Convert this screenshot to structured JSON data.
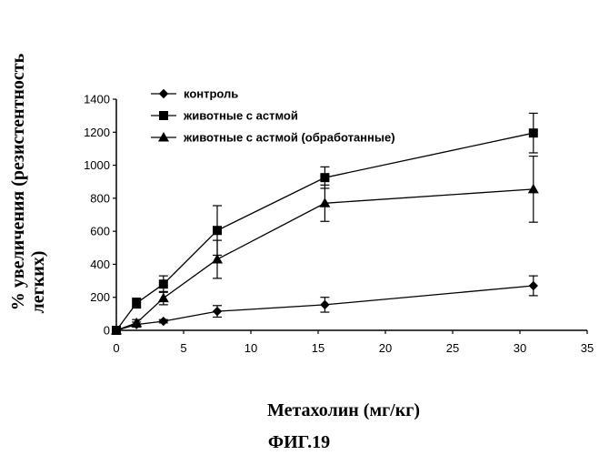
{
  "chart_data": {
    "type": "line",
    "xlabel": "Метахолин (мг/кг)",
    "ylabel_line1": "% увеличения (резистентность",
    "ylabel_line2": "легких)",
    "caption": "ФИГ.19",
    "xlim": [
      0,
      35
    ],
    "ylim": [
      0,
      1400
    ],
    "xticks": [
      0,
      5,
      10,
      15,
      20,
      25,
      30,
      35
    ],
    "yticks": [
      0,
      200,
      400,
      600,
      800,
      1000,
      1200,
      1400
    ],
    "grid": false,
    "legend_position": "top-left",
    "x": [
      0,
      1.5,
      3.5,
      7.5,
      15.5,
      31
    ],
    "series": [
      {
        "name": "контроль",
        "marker": "diamond",
        "values": [
          0,
          35,
          55,
          115,
          155,
          270
        ],
        "errors": [
          0,
          15,
          10,
          35,
          45,
          60
        ]
      },
      {
        "name": "животные с астмой",
        "marker": "square",
        "values": [
          0,
          165,
          280,
          605,
          925,
          1195
        ],
        "errors": [
          0,
          30,
          50,
          150,
          65,
          120
        ]
      },
      {
        "name": "животные с астмой (обработанные)",
        "marker": "triangle",
        "values": [
          0,
          45,
          195,
          430,
          770,
          855
        ],
        "errors": [
          0,
          20,
          40,
          115,
          110,
          200
        ]
      }
    ]
  },
  "colors": {
    "ink": "#000000",
    "background": "#ffffff"
  }
}
